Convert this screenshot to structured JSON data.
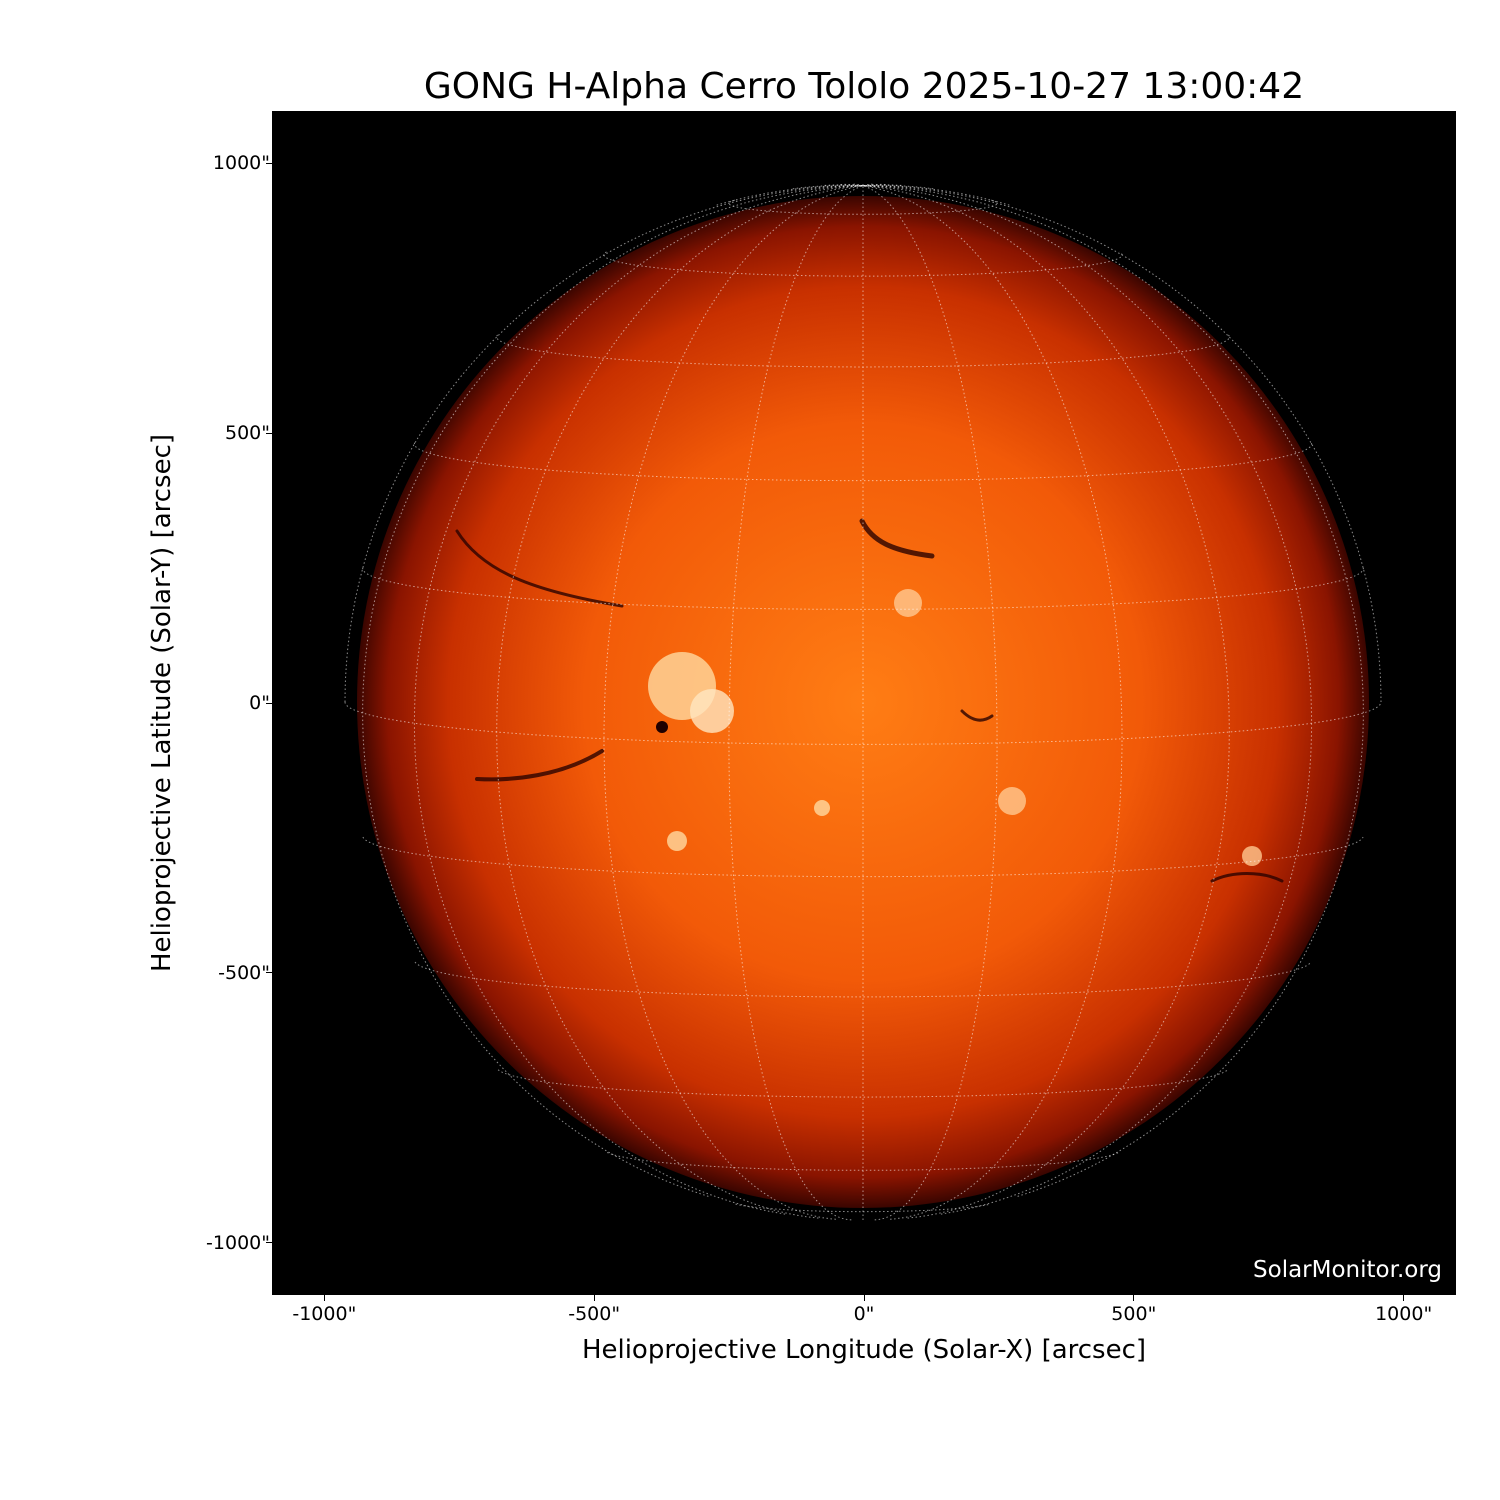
{
  "title": "GONG H-Alpha Cerro Tololo 2025-10-27 13:00:42",
  "watermark": "SolarMonitor.org",
  "axes": {
    "xlabel": "Helioprojective Longitude (Solar-X) [arcsec]",
    "ylabel": "Helioprojective Latitude (Solar-Y) [arcsec]",
    "xticks": [
      "-1000\"",
      "-500\"",
      "0\"",
      "500\"",
      "1000\""
    ],
    "yticks": [
      "1000\"",
      "500\"",
      "0\"",
      "-500\"",
      "-1000\""
    ],
    "xtick_values": [
      -1000,
      -500,
      0,
      500,
      1000
    ],
    "ytick_values": [
      1000,
      500,
      0,
      -500,
      -1000
    ],
    "xlim": [
      -1097,
      1097
    ],
    "ylim": [
      -1097,
      1097
    ]
  },
  "image": {
    "colormap": "hot (H-alpha)",
    "background": "#000000",
    "disk_center_color": "#ff7a12",
    "limb_color": "#6a0a00",
    "grid_color": "#ffffff",
    "grid_spacing_deg": 15
  }
}
